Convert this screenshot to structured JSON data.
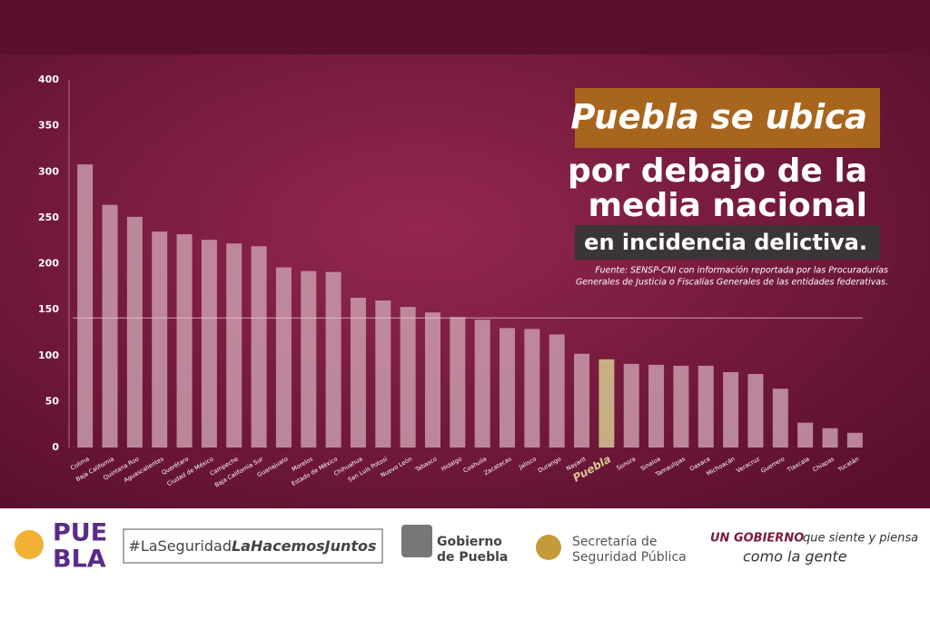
{
  "chart_data": {
    "type": "bar",
    "title_lines": [
      "Puebla se ubica",
      "por debajo de la",
      "media nacional",
      "en incidencia delictiva."
    ],
    "source_lines": [
      "Fuente: SENSP-CNI con información reportada por las Procuradurías",
      "Generales de Justicia o Fiscalías Generales de las  entidades federativas."
    ],
    "categories": [
      "Colima",
      "Baja California",
      "Quintana Roo",
      "Aguascalientes",
      "Querétaro",
      "Ciudad de México",
      "Campeche",
      "Baja California Sur",
      "Guanajuato",
      "Morelos",
      "Estado de México",
      "Chihuahua",
      "San Luis Potosí",
      "Nuevo León",
      "Tabasco",
      "Hidalgo",
      "Coahuila",
      "Zacatecas",
      "Jalisco",
      "Durango",
      "Nayarit",
      "Puebla",
      "Sonora",
      "Sinaloa",
      "Tamaulipas",
      "Oaxaca",
      "Michoacán",
      "Veracruz",
      "Guerrero",
      "Tlaxcala",
      "Chiapas",
      "Yucatán"
    ],
    "values": [
      308,
      264,
      251,
      235,
      232,
      226,
      222,
      219,
      196,
      192,
      191,
      163,
      160,
      153,
      147,
      142,
      139,
      130,
      129,
      123,
      102,
      96,
      91,
      90,
      89,
      89,
      82,
      80,
      64,
      27,
      21,
      16
    ],
    "color": "#c99aab",
    "colors": [
      "#c99aab",
      "#c99aab",
      "#c99aab",
      "#c99aab",
      "#c99aab",
      "#c99aab",
      "#c99aab",
      "#c99aab",
      "#c99aab",
      "#c99aab",
      "#c99aab",
      "#c99aab",
      "#c99aab",
      "#c99aab",
      "#c99aab",
      "#c99aab",
      "#c99aab",
      "#c99aab",
      "#c99aab",
      "#c99aab",
      "#c99aab",
      "#d6c892",
      "#c99aab",
      "#c99aab",
      "#c99aab",
      "#c99aab",
      "#c99aab",
      "#c99aab",
      "#c99aab",
      "#c99aab",
      "#c99aab",
      "#c99aab"
    ],
    "mean_line": 141,
    "ylim": [
      0,
      400
    ],
    "yticks": [
      0,
      50,
      100,
      150,
      200,
      250,
      300,
      350,
      400
    ]
  },
  "footer": {
    "logo_top": "PUE",
    "logo_bottom": "BLA",
    "hashtag_a": "#LaSeguridad",
    "hashtag_b": "LaHacemosJuntos",
    "gov_lines": [
      "Gobierno",
      "de Puebla"
    ],
    "ssp_lines": [
      "Secretaría de",
      "Seguridad Pública"
    ],
    "slogan_a": "UN GOBIERNO",
    "slogan_b": "que siente y piensa",
    "slogan_c": "como la gente"
  }
}
